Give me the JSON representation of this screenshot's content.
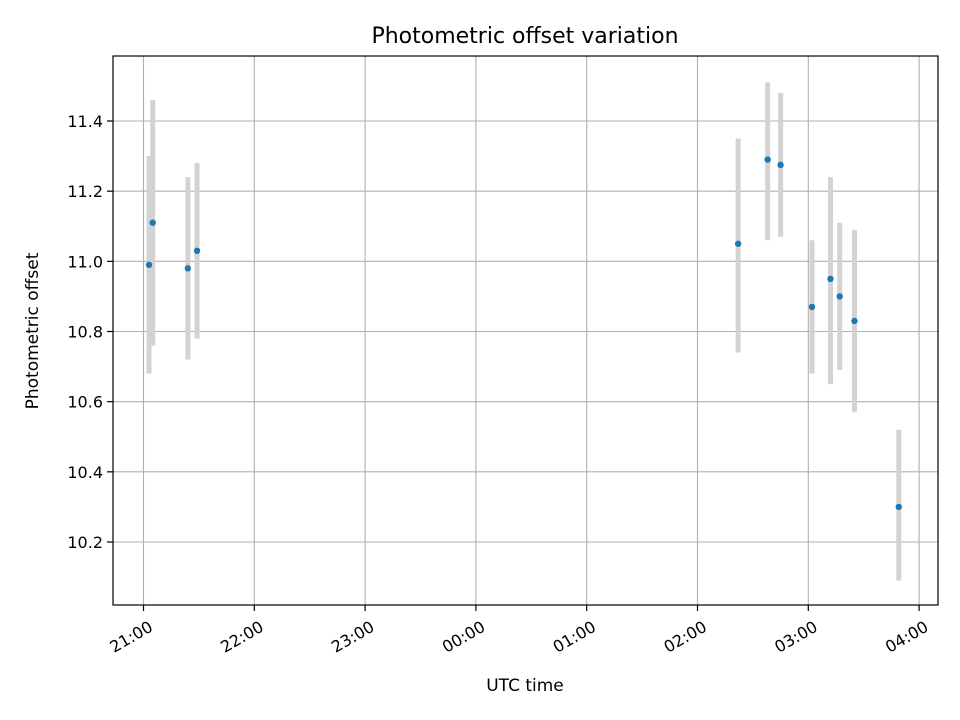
{
  "chart_data": {
    "type": "scatter",
    "title": "Photometric offset variation",
    "xlabel": "UTC time",
    "ylabel": "Photometric offset",
    "grid": true,
    "colors": {
      "point": "#1f77b4",
      "errorbar": "#d3d3d3"
    },
    "x_ticks": [
      "21:00",
      "22:00",
      "23:00",
      "00:00",
      "01:00",
      "02:00",
      "03:00",
      "04:00"
    ],
    "y_ticks": [
      10.2,
      10.4,
      10.6,
      10.8,
      11.0,
      11.2,
      11.4
    ],
    "series": [
      {
        "x": [
          "21:03",
          "21:05",
          "21:24",
          "21:29",
          "02:22",
          "02:38",
          "02:45",
          "03:02",
          "03:12",
          "03:17",
          "03:25",
          "03:49"
        ],
        "y": [
          10.99,
          11.11,
          10.98,
          11.03,
          11.05,
          11.29,
          11.275,
          10.87,
          10.95,
          10.9,
          10.83,
          10.3
        ],
        "yerr_low": [
          10.68,
          10.76,
          10.72,
          10.78,
          10.74,
          11.06,
          11.07,
          10.68,
          10.65,
          10.69,
          10.57,
          10.09
        ],
        "yerr_high": [
          11.3,
          11.46,
          11.24,
          11.28,
          11.35,
          11.51,
          11.48,
          11.06,
          11.24,
          11.11,
          11.09,
          10.52
        ]
      }
    ]
  }
}
